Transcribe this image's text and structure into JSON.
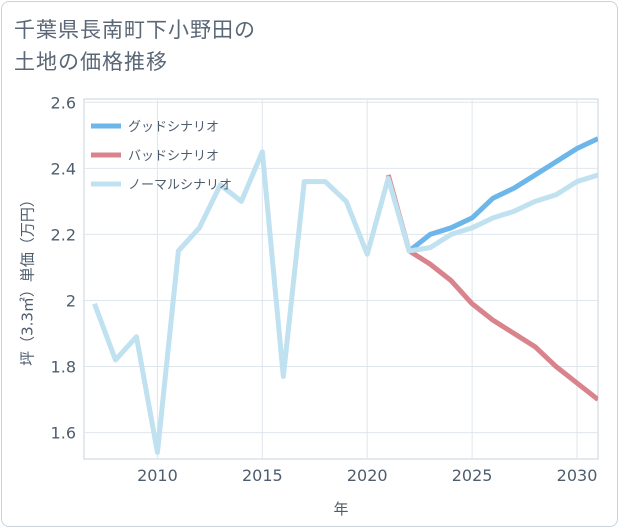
{
  "title": {
    "line1": "千葉県長南町下小野田の",
    "line2": "土地の価格推移"
  },
  "chart_data": {
    "type": "line",
    "xlabel": "年",
    "ylabel": "坪（3.3㎡）単価（万円）",
    "xlim": [
      2006.5,
      2031
    ],
    "ylim": [
      1.52,
      2.61
    ],
    "x_ticks": [
      2010,
      2015,
      2020,
      2025,
      2030
    ],
    "y_ticks": [
      1.6,
      1.8,
      2,
      2.2,
      2.4,
      2.6
    ],
    "x_tick_labels": [
      "2010",
      "2015",
      "2020",
      "2025",
      "2030"
    ],
    "y_tick_labels": [
      "1.6",
      "1.8",
      "2",
      "2.2",
      "2.4",
      "2.6"
    ],
    "grid": true,
    "legend_position": "top-left",
    "series": [
      {
        "name": "グッドシナリオ",
        "color": "#6cb6ea",
        "x": [
          2022,
          2023,
          2024,
          2025,
          2026,
          2027,
          2028,
          2029,
          2030,
          2031
        ],
        "values": [
          2.15,
          2.2,
          2.22,
          2.25,
          2.31,
          2.34,
          2.38,
          2.42,
          2.46,
          2.49
        ]
      },
      {
        "name": "バッドシナリオ",
        "color": "#d9848c",
        "x": [
          2021,
          2022,
          2023,
          2024,
          2025,
          2026,
          2027,
          2028,
          2029,
          2030,
          2031
        ],
        "values": [
          2.38,
          2.15,
          2.11,
          2.06,
          1.99,
          1.94,
          1.9,
          1.86,
          1.8,
          1.75,
          1.7
        ]
      },
      {
        "name": "ノーマルシナリオ",
        "color": "#bfe1f0",
        "x": [
          2007,
          2008,
          2009,
          2010,
          2011,
          2012,
          2013,
          2014,
          2015,
          2016,
          2017,
          2018,
          2019,
          2020,
          2021,
          2022,
          2023,
          2024,
          2025,
          2026,
          2027,
          2028,
          2029,
          2030,
          2031
        ],
        "values": [
          1.99,
          1.82,
          1.89,
          1.54,
          2.15,
          2.22,
          2.35,
          2.3,
          2.45,
          1.77,
          2.36,
          2.36,
          2.3,
          2.14,
          2.37,
          2.15,
          2.16,
          2.2,
          2.22,
          2.25,
          2.27,
          2.3,
          2.32,
          2.36,
          2.38
        ]
      }
    ]
  }
}
